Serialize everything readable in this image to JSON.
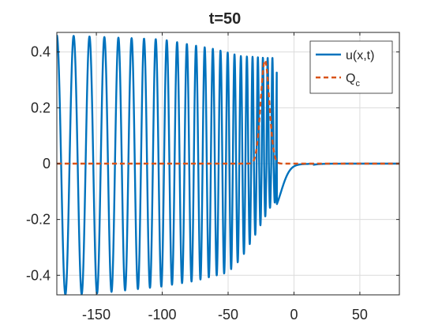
{
  "chart_data": {
    "type": "line",
    "title": "t=50",
    "xlabel": "",
    "ylabel": "",
    "xlim": [
      -180,
      80
    ],
    "ylim": [
      -0.47,
      0.47
    ],
    "x_ticks": [
      -150,
      -100,
      -50,
      0,
      50
    ],
    "y_ticks": [
      -0.4,
      -0.2,
      0,
      0.2,
      0.4
    ],
    "x_tick_labels": [
      "-150",
      "-100",
      "-50",
      "0",
      "50"
    ],
    "y_tick_labels": [
      "-0.4",
      "-0.2",
      "0",
      "0.2",
      "0.4"
    ],
    "grid": true,
    "box": true,
    "legend": {
      "position": "top-right",
      "entries": [
        {
          "series": 0,
          "main": "u(x,t)",
          "sub": ""
        },
        {
          "series": 1,
          "main": "Q",
          "sub": "c"
        }
      ]
    },
    "series": [
      {
        "name": "u(x,t)",
        "color": "#0072BD",
        "style": "solid",
        "description_points": [
          [
            -180,
            0.29
          ],
          [
            -150,
            0.46
          ],
          [
            -100,
            0.445
          ],
          [
            -80,
            0.43
          ],
          [
            -60,
            0.41
          ],
          [
            -50,
            0.4
          ],
          [
            -40,
            0.385
          ],
          [
            -33,
            0.37
          ],
          [
            -30,
            -0.26
          ],
          [
            -22,
            0.38
          ],
          [
            -16,
            -0.14
          ],
          [
            0,
            -0.03
          ],
          [
            15,
            0
          ],
          [
            80,
            0
          ]
        ],
        "trough_points": [
          [
            -180,
            -0.47
          ],
          [
            -150,
            -0.465
          ],
          [
            -100,
            -0.44
          ],
          [
            -75,
            -0.42
          ],
          [
            -50,
            -0.39
          ],
          [
            -40,
            -0.34
          ],
          [
            -30,
            -0.26
          ],
          [
            -16,
            -0.14
          ]
        ]
      },
      {
        "name": "Q_c",
        "color": "#D95319",
        "style": "dashed",
        "points": [
          [
            -180,
            0
          ],
          [
            -35,
            0
          ],
          [
            -30,
            0.03
          ],
          [
            -26,
            0.18
          ],
          [
            -22,
            0.37
          ],
          [
            -18,
            0.2
          ],
          [
            -14,
            0.04
          ],
          [
            -10,
            0.005
          ],
          [
            80,
            0
          ]
        ]
      }
    ]
  }
}
